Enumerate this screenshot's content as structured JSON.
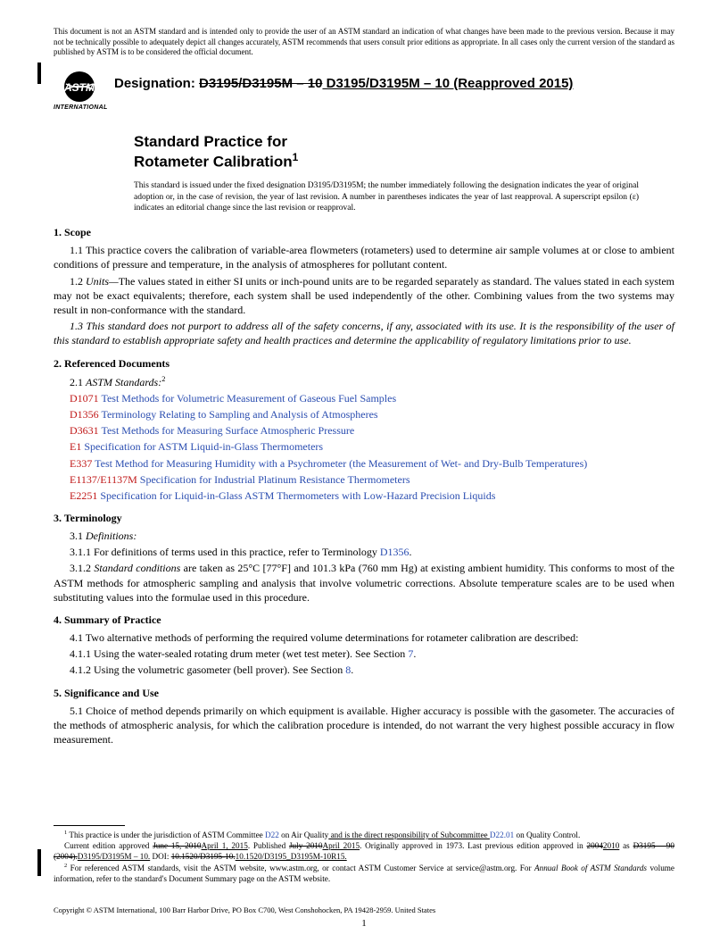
{
  "disclaimer": "This document is not an ASTM standard and is intended only to provide the user of an ASTM standard an indication of what changes have been made to the previous version. Because it may not be technically possible to adequately depict all changes accurately, ASTM recommends that users consult prior editions as appropriate. In all cases only the current version of the standard as published by ASTM is to be considered the official document.",
  "logo_caption": "INTERNATIONAL",
  "designation_label": "Designation: ",
  "designation_old": "D3195/D3195M – 10",
  "designation_new": " D3195/D3195M – 10 (Reapproved 2015)",
  "title_line1": "Standard Practice for",
  "title_line2": "Rotameter Calibration",
  "title_sup": "1",
  "fixed_note": "This standard is issued under the fixed designation D3195/D3195M; the number immediately following the designation indicates the year of original adoption or, in the case of revision, the year of last revision. A number in parentheses indicates the year of last reapproval. A superscript epsilon (ε) indicates an editorial change since the last revision or reapproval.",
  "sec1_head": "1. Scope",
  "sec1_1": "1.1 This practice covers the calibration of variable-area flowmeters (rotameters) used to determine air sample volumes at or close to ambient conditions of pressure and temperature, in the analysis of atmospheres for pollutant content.",
  "sec1_2_tag": "1.2 ",
  "sec1_2_label": "Units—",
  "sec1_2_body": "The values stated in either SI units or inch-pound units are to be regarded separately as standard. The values stated in each system may not be exact equivalents; therefore, each system shall be used independently of the other. Combining values from the two systems may result in non-conformance with the standard.",
  "sec1_3": "1.3 This standard does not purport to address all of the safety concerns, if any, associated with its use. It is the responsibility of the user of this standard to establish appropriate safety and health practices and determine the applicability of regulatory limitations prior to use.",
  "sec2_head": "2. Referenced Documents",
  "sec2_1_tag": "2.1 ",
  "sec2_1_label": "ASTM Standards:",
  "sec2_1_sup": "2",
  "refs": [
    {
      "code": "D1071",
      "title": " Test Methods for Volumetric Measurement of Gaseous Fuel Samples"
    },
    {
      "code": "D1356",
      "title": " Terminology Relating to Sampling and Analysis of Atmospheres"
    },
    {
      "code": "D3631",
      "title": " Test Methods for Measuring Surface Atmospheric Pressure"
    },
    {
      "code": "E1",
      "title": " Specification for ASTM Liquid-in-Glass Thermometers"
    },
    {
      "code": "E337",
      "title": " Test Method for Measuring Humidity with a Psychrometer (the Measurement of Wet- and Dry-Bulb Temperatures)"
    },
    {
      "code": "E1137/E1137M",
      "title": " Specification for Industrial Platinum Resistance Thermometers"
    },
    {
      "code": "E2251",
      "title": " Specification for Liquid-in-Glass ASTM Thermometers with Low-Hazard Precision Liquids"
    }
  ],
  "sec3_head": "3. Terminology",
  "sec3_1_tag": "3.1 ",
  "sec3_1_label": "Definitions:",
  "sec3_1_1a": "3.1.1 For definitions of terms used in this practice, refer to Terminology ",
  "sec3_1_1b": "D1356",
  "sec3_1_1c": ".",
  "sec3_1_2_tag": "3.1.2 ",
  "sec3_1_2_label": "Standard conditions",
  "sec3_1_2_body": " are taken as 25°C [77°F] and 101.3 kPa (760 mm Hg) at existing ambient humidity. This conforms to most of the ASTM methods for atmospheric sampling and analysis that involve volumetric corrections. Absolute temperature scales are to be used when substituting values into the formulae used in this procedure.",
  "sec4_head": "4. Summary of Practice",
  "sec4_1": "4.1 Two alternative methods of performing the required volume determinations for rotameter calibration are described:",
  "sec4_1_1a": "4.1.1 Using the water-sealed rotating drum meter (wet test meter). See Section ",
  "sec4_1_1b": "7",
  "sec4_1_1c": ".",
  "sec4_1_2a": "4.1.2 Using the volumetric gasometer (bell prover). See Section ",
  "sec4_1_2b": "8",
  "sec4_1_2c": ".",
  "sec5_head": "5. Significance and Use",
  "sec5_1": "5.1 Choice of method depends primarily on which equipment is available. Higher accuracy is possible with the gasometer. The accuracies of the methods of atmospheric analysis, for which the calibration procedure is intended, do not warrant the very highest possible accuracy in flow measurement.",
  "foot1_sup": "1",
  "foot1a": " This practice is under the jurisdiction of ASTM Committee ",
  "foot1b": "D22",
  "foot1c": " on Air Quality",
  "foot1c2": " and is the direct responsibility of Subcommittee ",
  "foot1d": "D22.01",
  "foot1e": " on Quality Control.",
  "foot1_line2a": "Current edition approved ",
  "foot1_line2_old1": "June 15, 2010",
  "foot1_line2_new1": "April 1, 2015",
  "foot1_line2b": ". Published ",
  "foot1_line2_old2": "July 2010",
  "foot1_line2_new2": "April 2015",
  "foot1_line2c": ". Originally approved in 1973. Last previous edition approved in ",
  "foot1_line2_old3": "2004",
  "foot1_line2_new3": "2010",
  "foot1_line2d": " as ",
  "foot1_line3_old": "D3195 – 90 (2004).",
  "foot1_line3_new": "D3195/D3195M – 10.",
  "foot1_line3a": " DOI: ",
  "foot1_line3_old2": "10.1520/D3195-10.",
  "foot1_line3_new2": "10.1520/D3195_D3195M-10R15.",
  "foot2_sup": "2",
  "foot2a": " For referenced ASTM standards, visit the ASTM website, www.astm.org, or contact ASTM Customer Service at service@astm.org. For ",
  "foot2b": "Annual Book of ASTM Standards",
  "foot2c": " volume information, refer to the standard's Document Summary page on the ASTM website.",
  "copyright": "Copyright © ASTM International, 100 Barr Harbor Drive, PO Box C700, West Conshohocken, PA 19428-2959. United States",
  "pagenum": "1",
  "colors": {
    "link": "#2a4db0",
    "refcode": "#c01818"
  }
}
